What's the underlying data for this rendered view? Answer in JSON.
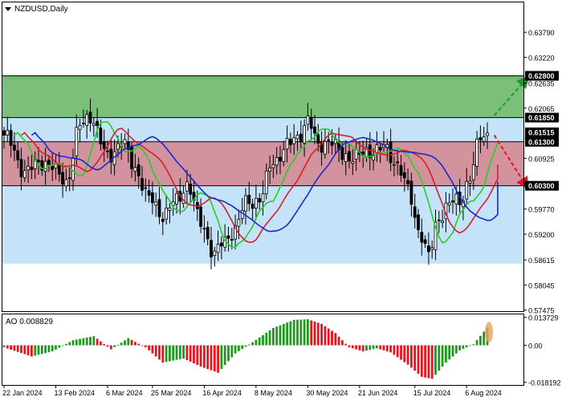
{
  "header": {
    "symbol_label": "NZDUSD,Daily"
  },
  "colors": {
    "background": "#ffffff",
    "green_zone": "#7bbf7b",
    "green_zone_top": "#6fb46f",
    "blue_zone": "#c4e2f8",
    "red_zone": "#d2939e",
    "candle": "#000000",
    "ma_fast": "#22d022",
    "ma_mid": "#dd1c2a",
    "ma_slow": "#1c28d0",
    "ao_up": "#1f9a1f",
    "ao_down": "#e5141e",
    "arrow_up": "#1f9a1f",
    "arrow_down": "#e5141e",
    "ao_highlight": "#f0a060",
    "price_tag_bg": "#000000",
    "price_tag_text": "#ffffff"
  },
  "price_axis": {
    "min": 0.5745,
    "max": 0.6445,
    "ticks": [
      "0.63790",
      "0.63220",
      "0.62635",
      "0.62065",
      "0.60925",
      "0.60355",
      "0.59770",
      "0.59200",
      "0.58615",
      "0.58045",
      "0.57475"
    ]
  },
  "levels": [
    {
      "name": "level-062800",
      "value": 0.628,
      "label": "0.62800"
    },
    {
      "name": "level-061850",
      "value": 0.6185,
      "label": "0.61850"
    },
    {
      "name": "level-061300",
      "value": 0.613,
      "label": "0.61300"
    },
    {
      "name": "level-060300",
      "value": 0.603,
      "label": "0.60300"
    }
  ],
  "current_price": {
    "value": 0.61515,
    "label": "0.61515"
  },
  "zones": [
    {
      "name": "green-zone",
      "from": 0.6185,
      "to": 0.628
    },
    {
      "name": "blue-zone-upper",
      "from": 0.613,
      "to": 0.6185
    },
    {
      "name": "red-zone",
      "from": 0.603,
      "to": 0.613
    },
    {
      "name": "blue-zone-lower",
      "from": 0.5853,
      "to": 0.603
    }
  ],
  "time_axis": {
    "labels": [
      "22 Jan 2024",
      "13 Feb 2024",
      "6 Mar 2024",
      "25 Mar 2024",
      "16 Apr 2024",
      "8 May 2024",
      "30 May 2024",
      "21 Jun 2024",
      "15 Jul 2024",
      "6 Aug 2024"
    ]
  },
  "ao": {
    "label": "AO 0.008829",
    "ticks": [
      "0.013729",
      "0.00",
      "-0.018192"
    ],
    "min": -0.0195,
    "max": 0.0152
  },
  "chart_data": {
    "type": "candlestick",
    "symbol": "NZDUSD",
    "timeframe": "Daily",
    "period": "2024-01-22 to 2024-08-19",
    "ohlc_anchors": [
      {
        "i": 0,
        "close": 0.6145
      },
      {
        "i": 6,
        "close": 0.6065
      },
      {
        "i": 12,
        "close": 0.6085
      },
      {
        "i": 18,
        "close": 0.604
      },
      {
        "i": 22,
        "close": 0.6165
      },
      {
        "i": 25,
        "close": 0.619
      },
      {
        "i": 30,
        "close": 0.6095
      },
      {
        "i": 34,
        "close": 0.613
      },
      {
        "i": 38,
        "close": 0.607
      },
      {
        "i": 42,
        "close": 0.6
      },
      {
        "i": 46,
        "close": 0.5965
      },
      {
        "i": 50,
        "close": 0.5995
      },
      {
        "i": 53,
        "close": 0.6035
      },
      {
        "i": 57,
        "close": 0.5945
      },
      {
        "i": 61,
        "close": 0.5875
      },
      {
        "i": 64,
        "close": 0.5905
      },
      {
        "i": 67,
        "close": 0.5935
      },
      {
        "i": 70,
        "close": 0.599
      },
      {
        "i": 74,
        "close": 0.6
      },
      {
        "i": 78,
        "close": 0.6085
      },
      {
        "i": 82,
        "close": 0.612
      },
      {
        "i": 85,
        "close": 0.614
      },
      {
        "i": 88,
        "close": 0.618
      },
      {
        "i": 91,
        "close": 0.612
      },
      {
        "i": 94,
        "close": 0.6135
      },
      {
        "i": 98,
        "close": 0.61
      },
      {
        "i": 102,
        "close": 0.6095
      },
      {
        "i": 106,
        "close": 0.611
      },
      {
        "i": 110,
        "close": 0.6115
      },
      {
        "i": 114,
        "close": 0.608
      },
      {
        "i": 117,
        "close": 0.602
      },
      {
        "i": 120,
        "close": 0.5935
      },
      {
        "i": 123,
        "close": 0.587
      },
      {
        "i": 126,
        "close": 0.596
      },
      {
        "i": 129,
        "close": 0.599
      },
      {
        "i": 132,
        "close": 0.5995
      },
      {
        "i": 135,
        "close": 0.605
      },
      {
        "i": 138,
        "close": 0.614
      },
      {
        "i": 140,
        "close": 0.615
      }
    ],
    "moving_averages": [
      {
        "name": "fast",
        "color": "#22d022"
      },
      {
        "name": "mid",
        "color": "#dd1c2a"
      },
      {
        "name": "slow",
        "color": "#1c28d0"
      }
    ],
    "ao_anchors": [
      {
        "i": 0,
        "v": -0.001
      },
      {
        "i": 8,
        "v": -0.0055
      },
      {
        "i": 14,
        "v": -0.003
      },
      {
        "i": 20,
        "v": 0.0025
      },
      {
        "i": 26,
        "v": 0.0045
      },
      {
        "i": 31,
        "v": -0.002
      },
      {
        "i": 36,
        "v": 0.0035
      },
      {
        "i": 41,
        "v": -0.001
      },
      {
        "i": 46,
        "v": -0.0085
      },
      {
        "i": 52,
        "v": -0.0065
      },
      {
        "i": 57,
        "v": -0.0105
      },
      {
        "i": 62,
        "v": -0.0135
      },
      {
        "i": 67,
        "v": -0.004
      },
      {
        "i": 72,
        "v": 0.0015
      },
      {
        "i": 78,
        "v": 0.0085
      },
      {
        "i": 84,
        "v": 0.0125
      },
      {
        "i": 88,
        "v": 0.0128
      },
      {
        "i": 92,
        "v": 0.0105
      },
      {
        "i": 96,
        "v": 0.006
      },
      {
        "i": 100,
        "v": -0.001
      },
      {
        "i": 104,
        "v": -0.003
      },
      {
        "i": 108,
        "v": -0.0015
      },
      {
        "i": 112,
        "v": -0.0035
      },
      {
        "i": 117,
        "v": -0.0095
      },
      {
        "i": 121,
        "v": -0.0155
      },
      {
        "i": 124,
        "v": -0.0165
      },
      {
        "i": 128,
        "v": -0.0085
      },
      {
        "i": 132,
        "v": -0.0025
      },
      {
        "i": 136,
        "v": 0.0005
      },
      {
        "i": 140,
        "v": 0.0088
      }
    ],
    "arrows": [
      {
        "name": "up-forecast-arrow",
        "from_i": 142,
        "from_value": 0.619,
        "to_i": 151,
        "to_value": 0.627
      },
      {
        "name": "down-forecast-arrow",
        "from_i": 142,
        "from_value": 0.6145,
        "to_i": 151,
        "to_value": 0.6033
      }
    ]
  }
}
